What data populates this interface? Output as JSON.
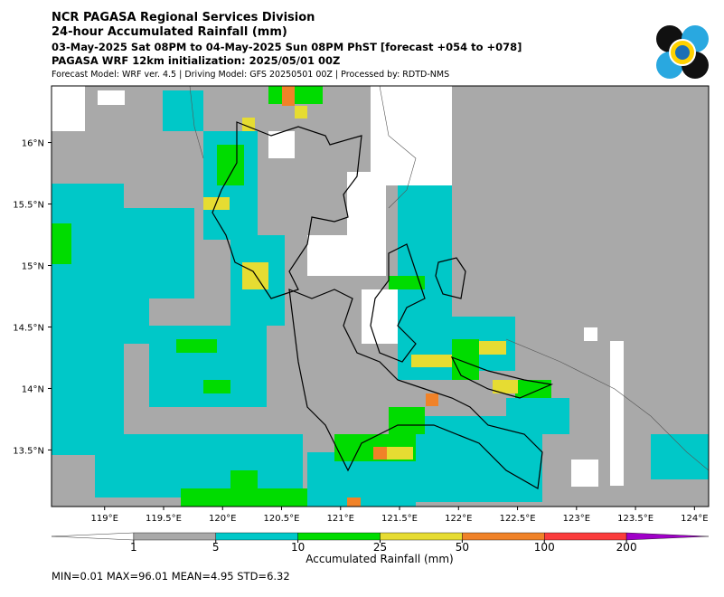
{
  "header": {
    "title": "NCR PAGASA Regional Services Division",
    "subtitle": "24-hour Accumulated Rainfall (mm)",
    "period": "03-May-2025 Sat 08PM to 04-May-2025 Sun 08PM PhST [forecast +054 to +078]",
    "init": "PAGASA WRF 12km initialization: 2025/05/01 00Z",
    "model": "Forecast Model: WRF ver. 4.5 | Driving Model: GFS 20250501 00Z | Processed by: RDTD-NMS"
  },
  "map": {
    "lonlim": [
      118.55,
      124.12
    ],
    "latlim": [
      13.04,
      16.46
    ],
    "lon_ticks": [
      {
        "value": 119,
        "label": "119°E"
      },
      {
        "value": 119.5,
        "label": "119.5°E"
      },
      {
        "value": 120,
        "label": "120°E"
      },
      {
        "value": 120.5,
        "label": "120.5°E"
      },
      {
        "value": 121,
        "label": "121°E"
      },
      {
        "value": 121.5,
        "label": "121.5°E"
      },
      {
        "value": 122,
        "label": "122°E"
      },
      {
        "value": 122.5,
        "label": "122.5°E"
      },
      {
        "value": 123,
        "label": "123°E"
      },
      {
        "value": 123.5,
        "label": "123.5°E"
      },
      {
        "value": 124,
        "label": "124°E"
      }
    ],
    "lat_ticks": [
      {
        "value": 16,
        "label": "16°N"
      },
      {
        "value": 15.5,
        "label": "15.5°N"
      },
      {
        "value": 15,
        "label": "15°N"
      },
      {
        "value": 14.5,
        "label": "14.5°N"
      },
      {
        "value": 14,
        "label": "14°N"
      },
      {
        "value": 13.5,
        "label": "13.5°N"
      }
    ]
  },
  "colorbar": {
    "label": "Accumulated Rainfall (mm)",
    "levels": [
      1,
      5,
      10,
      25,
      50,
      100,
      200
    ],
    "colors": [
      "#ffffff",
      "#a9a9a9",
      "#00c8c8",
      "#00dc00",
      "#e6dc32",
      "#f08228",
      "#fa3c3c",
      "#a000c8"
    ]
  },
  "stats": "MIN=0.01   MAX=96.01   MEAN=4.95   STD=6.32"
}
